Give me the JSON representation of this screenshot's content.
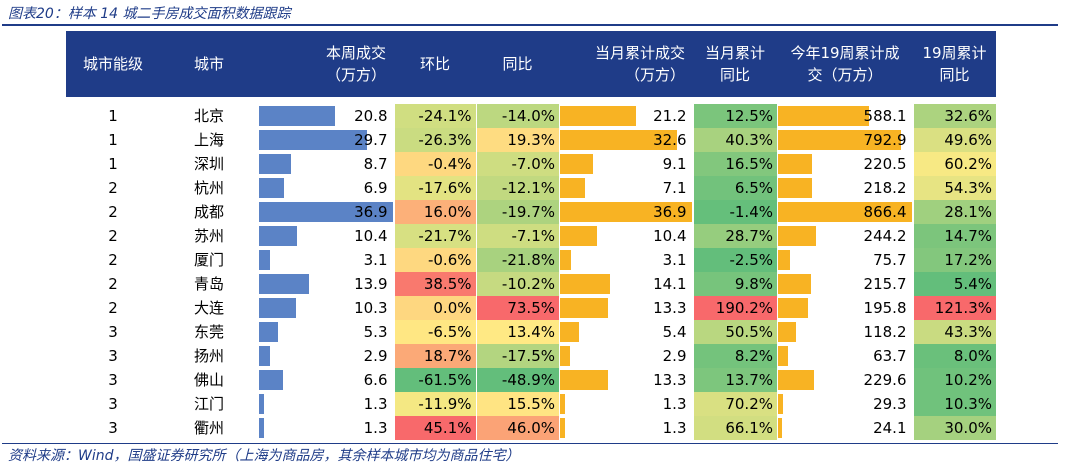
{
  "caption": "图表20：样本 14 城二手房成交面积数据跟踪",
  "source": "资料来源：Wind，国盛证券研究所（上海为商品房，其余样本城市均为商品住宅）",
  "colors": {
    "header_bg": "#1f3c88",
    "bar_blue": "#5b83c6",
    "bar_orange": "#f8b323"
  },
  "headers": {
    "tier": "城市能级",
    "city": "城市",
    "week_vol_1": "本周成交",
    "week_vol_2": "（万方）",
    "mom": "环比",
    "yoy": "同比",
    "month_cum_1": "当月累计成交",
    "month_cum_2": "（万方）",
    "month_yoy_1": "当月累计",
    "month_yoy_2": "同比",
    "ytd_1": "今年19周累计成",
    "ytd_2": "交（万方）",
    "ytd_yoy_1": "19周累计",
    "ytd_yoy_2": "同比"
  },
  "chart_data": {
    "type": "table",
    "columns": [
      "城市能级",
      "城市",
      "本周成交（万方）",
      "环比",
      "同比",
      "当月累计成交（万方）",
      "当月累计同比",
      "今年19周累计成交（万方）",
      "19周累计同比"
    ],
    "rows": [
      {
        "tier": "1",
        "city": "北京",
        "week": "20.8",
        "mom": "-24.1%",
        "yoy": "-14.0%",
        "month": "21.2",
        "month_yoy": "12.5%",
        "ytd": "588.1",
        "ytd_yoy": "32.6%"
      },
      {
        "tier": "1",
        "city": "上海",
        "week": "29.7",
        "mom": "-26.3%",
        "yoy": "19.3%",
        "month": "32.6",
        "month_yoy": "40.3%",
        "ytd": "792.9",
        "ytd_yoy": "49.6%"
      },
      {
        "tier": "1",
        "city": "深圳",
        "week": "8.7",
        "mom": "-0.4%",
        "yoy": "-7.0%",
        "month": "9.1",
        "month_yoy": "16.5%",
        "ytd": "220.5",
        "ytd_yoy": "60.2%"
      },
      {
        "tier": "2",
        "city": "杭州",
        "week": "6.9",
        "mom": "-17.6%",
        "yoy": "-12.1%",
        "month": "7.1",
        "month_yoy": "6.5%",
        "ytd": "218.2",
        "ytd_yoy": "54.3%"
      },
      {
        "tier": "2",
        "city": "成都",
        "week": "36.9",
        "mom": "16.0%",
        "yoy": "-19.7%",
        "month": "36.9",
        "month_yoy": "-1.4%",
        "ytd": "866.4",
        "ytd_yoy": "28.1%"
      },
      {
        "tier": "2",
        "city": "苏州",
        "week": "10.4",
        "mom": "-21.7%",
        "yoy": "-7.1%",
        "month": "10.4",
        "month_yoy": "28.7%",
        "ytd": "244.2",
        "ytd_yoy": "14.7%"
      },
      {
        "tier": "2",
        "city": "厦门",
        "week": "3.1",
        "mom": "-0.6%",
        "yoy": "-21.8%",
        "month": "3.1",
        "month_yoy": "-2.5%",
        "ytd": "75.7",
        "ytd_yoy": "17.2%"
      },
      {
        "tier": "2",
        "city": "青岛",
        "week": "13.9",
        "mom": "38.5%",
        "yoy": "-10.2%",
        "month": "14.1",
        "month_yoy": "9.8%",
        "ytd": "215.7",
        "ytd_yoy": "5.4%"
      },
      {
        "tier": "2",
        "city": "大连",
        "week": "10.3",
        "mom": "0.0%",
        "yoy": "73.5%",
        "month": "13.3",
        "month_yoy": "190.2%",
        "ytd": "195.8",
        "ytd_yoy": "121.3%"
      },
      {
        "tier": "3",
        "city": "东莞",
        "week": "5.3",
        "mom": "-6.5%",
        "yoy": "13.4%",
        "month": "5.4",
        "month_yoy": "50.5%",
        "ytd": "118.2",
        "ytd_yoy": "43.3%"
      },
      {
        "tier": "3",
        "city": "扬州",
        "week": "2.9",
        "mom": "18.7%",
        "yoy": "-17.5%",
        "month": "2.9",
        "month_yoy": "8.2%",
        "ytd": "63.7",
        "ytd_yoy": "8.0%"
      },
      {
        "tier": "3",
        "city": "佛山",
        "week": "6.6",
        "mom": "-61.5%",
        "yoy": "-48.9%",
        "month": "13.3",
        "month_yoy": "13.7%",
        "ytd": "229.6",
        "ytd_yoy": "10.2%"
      },
      {
        "tier": "3",
        "city": "江门",
        "week": "1.3",
        "mom": "-11.9%",
        "yoy": "15.5%",
        "month": "1.3",
        "month_yoy": "70.2%",
        "ytd": "29.3",
        "ytd_yoy": "10.3%"
      },
      {
        "tier": "3",
        "city": "衢州",
        "week": "1.3",
        "mom": "45.1%",
        "yoy": "46.0%",
        "month": "1.3",
        "month_yoy": "66.1%",
        "ytd": "24.1",
        "ytd_yoy": "30.0%"
      }
    ]
  }
}
